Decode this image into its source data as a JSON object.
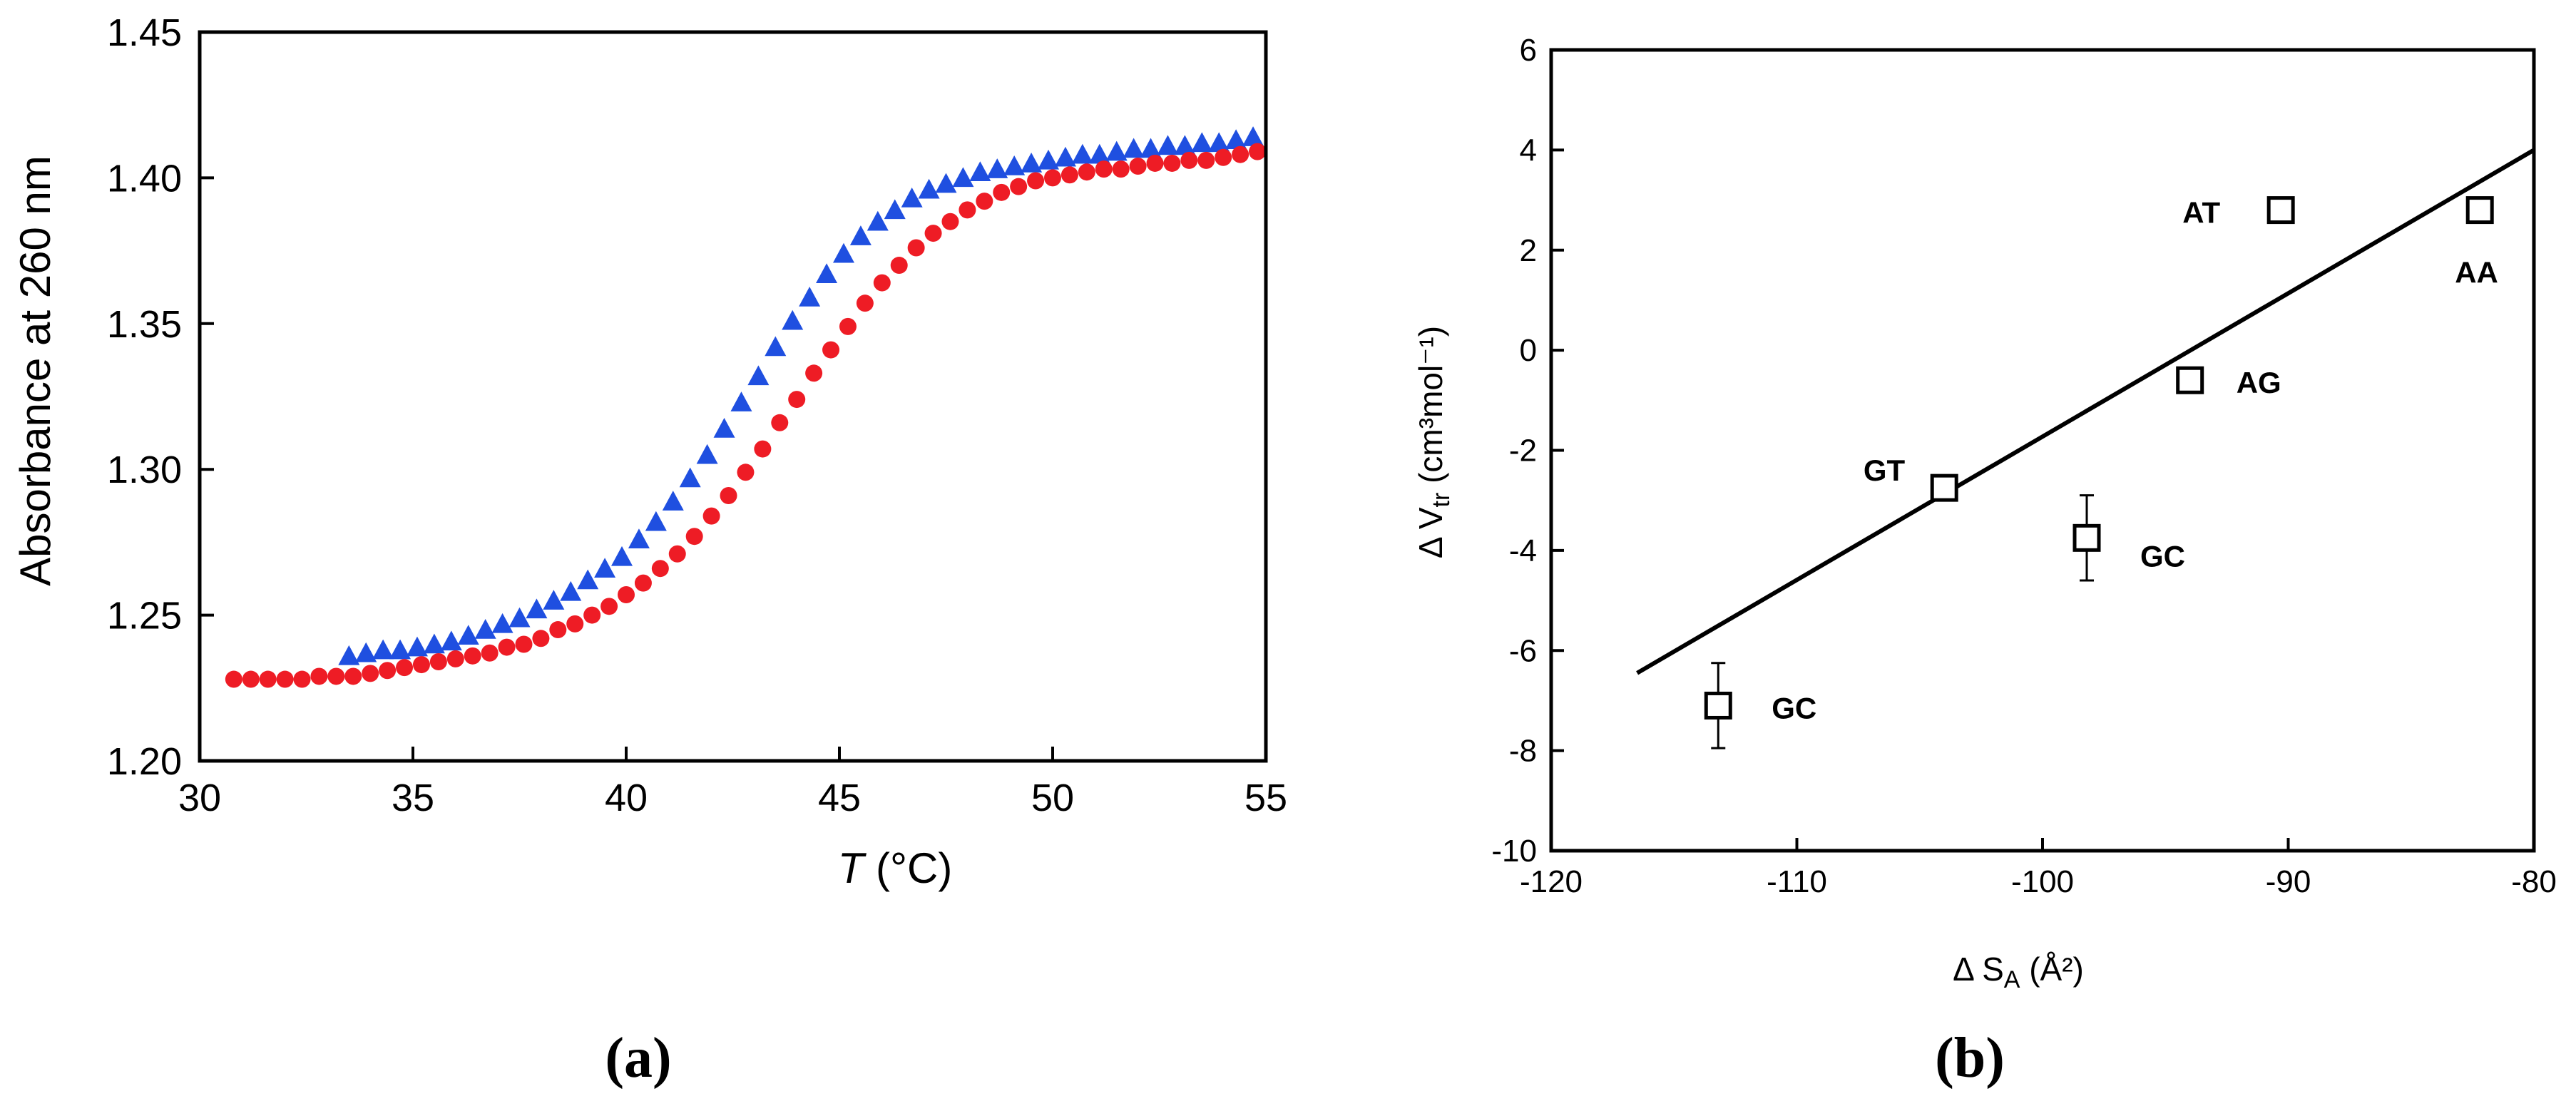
{
  "chart_data": [
    {
      "panel_label": "(a)",
      "type": "scatter",
      "title": "",
      "xlabel": "T",
      "xlabel_unit": "(°C)",
      "ylabel": "Absorbance at 260 nm",
      "xlim": [
        30,
        55
      ],
      "ylim": [
        1.2,
        1.45
      ],
      "xticks": [
        "30",
        "35",
        "40",
        "45",
        "50",
        "55"
      ],
      "yticks": [
        "1.20",
        "1.25",
        "1.30",
        "1.35",
        "1.40",
        "1.45"
      ],
      "grid": false,
      "series": [
        {
          "name": "blue triangles",
          "marker": "triangle",
          "color": "#1f4fe0",
          "x": [
            33.5,
            33.9,
            34.3,
            34.7,
            35.1,
            35.5,
            35.9,
            36.3,
            36.7,
            37.1,
            37.5,
            37.9,
            38.3,
            38.7,
            39.1,
            39.5,
            39.9,
            40.3,
            40.7,
            41.1,
            41.5,
            41.9,
            42.3,
            42.7,
            43.1,
            43.5,
            43.9,
            44.3,
            44.7,
            45.1,
            45.5,
            45.9,
            46.3,
            46.7,
            47.1,
            47.5,
            47.9,
            48.3,
            48.7,
            49.1,
            49.5,
            49.9,
            50.3,
            50.7,
            51.1,
            51.5,
            51.9,
            52.3,
            52.7,
            53.1,
            53.5,
            53.9,
            54.3,
            54.7
          ],
          "y": [
            1.236,
            1.237,
            1.238,
            1.238,
            1.239,
            1.24,
            1.241,
            1.243,
            1.245,
            1.247,
            1.249,
            1.252,
            1.255,
            1.258,
            1.262,
            1.266,
            1.27,
            1.276,
            1.282,
            1.289,
            1.297,
            1.305,
            1.314,
            1.323,
            1.332,
            1.342,
            1.351,
            1.359,
            1.367,
            1.374,
            1.38,
            1.385,
            1.389,
            1.393,
            1.396,
            1.398,
            1.4,
            1.402,
            1.403,
            1.404,
            1.405,
            1.406,
            1.407,
            1.408,
            1.408,
            1.409,
            1.41,
            1.41,
            1.411,
            1.411,
            1.412,
            1.412,
            1.413,
            1.414
          ]
        },
        {
          "name": "red circles",
          "marker": "circle",
          "color": "#ee1c25",
          "x": [
            30.8,
            31.2,
            31.6,
            32.0,
            32.4,
            32.8,
            33.2,
            33.6,
            34.0,
            34.4,
            34.8,
            35.2,
            35.6,
            36.0,
            36.4,
            36.8,
            37.2,
            37.6,
            38.0,
            38.4,
            38.8,
            39.2,
            39.6,
            40.0,
            40.4,
            40.8,
            41.2,
            41.6,
            42.0,
            42.4,
            42.8,
            43.2,
            43.6,
            44.0,
            44.4,
            44.8,
            45.2,
            45.6,
            46.0,
            46.4,
            46.8,
            47.2,
            47.6,
            48.0,
            48.4,
            48.8,
            49.2,
            49.6,
            50.0,
            50.4,
            50.8,
            51.2,
            51.6,
            52.0,
            52.4,
            52.8,
            53.2,
            53.6,
            54.0,
            54.4,
            54.8
          ],
          "y": [
            1.228,
            1.228,
            1.228,
            1.228,
            1.228,
            1.229,
            1.229,
            1.229,
            1.23,
            1.231,
            1.232,
            1.233,
            1.234,
            1.235,
            1.236,
            1.237,
            1.239,
            1.24,
            1.242,
            1.245,
            1.247,
            1.25,
            1.253,
            1.257,
            1.261,
            1.266,
            1.271,
            1.277,
            1.284,
            1.291,
            1.299,
            1.307,
            1.316,
            1.324,
            1.333,
            1.341,
            1.349,
            1.357,
            1.364,
            1.37,
            1.376,
            1.381,
            1.385,
            1.389,
            1.392,
            1.395,
            1.397,
            1.399,
            1.4,
            1.401,
            1.402,
            1.403,
            1.403,
            1.404,
            1.405,
            1.405,
            1.406,
            1.406,
            1.407,
            1.408,
            1.409
          ]
        }
      ]
    },
    {
      "panel_label": "(b)",
      "type": "scatter",
      "title": "",
      "xlabel": "Δ S",
      "xlabel_sub": "A",
      "xlabel_unit": "(Å²)",
      "ylabel": "Δ V",
      "ylabel_sub": "tr",
      "ylabel_unit": "(cm³mol⁻¹)",
      "xlim": [
        -120,
        -80
      ],
      "ylim": [
        -10,
        6
      ],
      "xticks": [
        "-120",
        "-110",
        "-100",
        "-90",
        "-80"
      ],
      "yticks": [
        "-10",
        "-8",
        "-6",
        "-4",
        "-2",
        "0",
        "2",
        "4",
        "6"
      ],
      "grid": false,
      "points": [
        {
          "label": "GC",
          "x": -113.2,
          "y": -7.1,
          "yerr": 0.85
        },
        {
          "label": "GT",
          "x": -104.0,
          "y": -2.75,
          "yerr": 0
        },
        {
          "label": "GC",
          "x": -98.2,
          "y": -3.75,
          "yerr": 0.85
        },
        {
          "label": "AG",
          "x": -94.0,
          "y": -0.6,
          "yerr": 0
        },
        {
          "label": "AT",
          "x": -90.3,
          "y": 2.8,
          "yerr": 0.2
        },
        {
          "label": "AA",
          "x": -82.2,
          "y": 2.8,
          "yerr": 0.2
        }
      ],
      "fit_line": {
        "x": [
          -116.5,
          -80
        ],
        "y": [
          -6.45,
          4.0
        ]
      }
    }
  ]
}
